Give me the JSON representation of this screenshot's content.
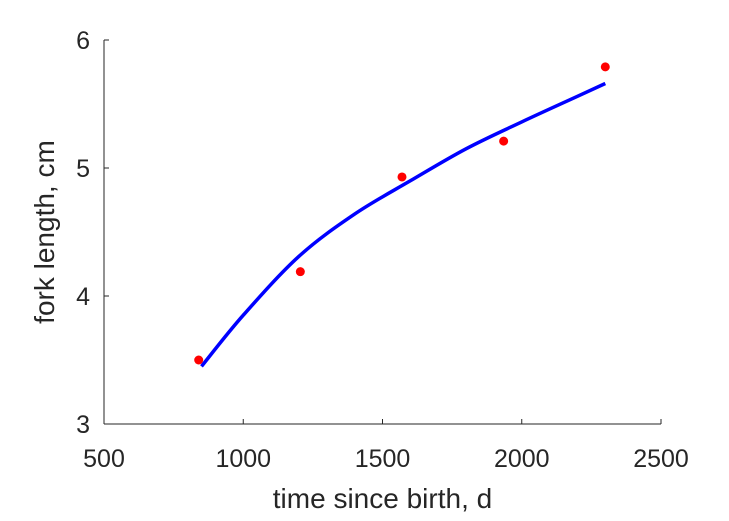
{
  "chart_data": {
    "type": "scatter",
    "xlabel": "time since birth, d",
    "ylabel": "fork length, cm",
    "xlim": [
      500,
      2500
    ],
    "ylim": [
      3,
      6
    ],
    "xticks": [
      500,
      1000,
      1500,
      2000,
      2500
    ],
    "yticks": [
      3,
      4,
      5,
      6
    ],
    "grid": false,
    "series": [
      {
        "kind": "points",
        "color": "#ff0000",
        "points": [
          {
            "x": 840,
            "y": 3.5
          },
          {
            "x": 1205,
            "y": 4.19
          },
          {
            "x": 1570,
            "y": 4.93
          },
          {
            "x": 1935,
            "y": 5.21
          },
          {
            "x": 2300,
            "y": 5.79
          }
        ]
      },
      {
        "kind": "fit-line",
        "color": "#0000ff",
        "points": [
          {
            "x": 850,
            "y": 3.45
          },
          {
            "x": 1000,
            "y": 3.85
          },
          {
            "x": 1200,
            "y": 4.31
          },
          {
            "x": 1400,
            "y": 4.64
          },
          {
            "x": 1600,
            "y": 4.9
          },
          {
            "x": 1800,
            "y": 5.15
          },
          {
            "x": 2000,
            "y": 5.36
          },
          {
            "x": 2200,
            "y": 5.56
          },
          {
            "x": 2300,
            "y": 5.66
          }
        ]
      }
    ]
  }
}
